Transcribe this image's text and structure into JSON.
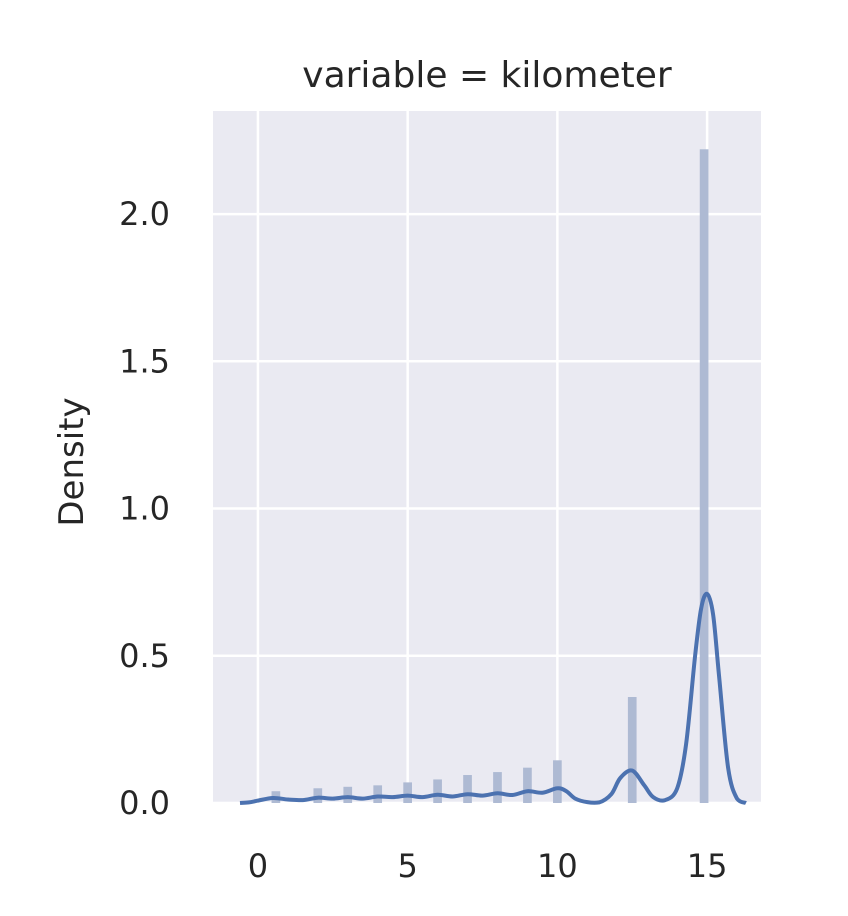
{
  "chart_data": {
    "type": "histogram",
    "title": "variable = kilometer",
    "xlabel": "",
    "ylabel": "Density",
    "xlim": [
      -1.5,
      16.8
    ],
    "ylim": [
      0,
      2.35
    ],
    "xticks": [
      0,
      5,
      10,
      15
    ],
    "yticks": [
      0.0,
      0.5,
      1.0,
      1.5,
      2.0
    ],
    "ytick_labels": [
      "0.0",
      "0.5",
      "1.0",
      "1.5",
      "2.0"
    ],
    "grid": true,
    "colors": {
      "background": "#eaeaf2",
      "bars": "#aebad3",
      "kde": "#4c72b0"
    },
    "histogram": {
      "bin_width": 0.29,
      "bins": [
        {
          "x": 0.6,
          "density": 0.04
        },
        {
          "x": 2.0,
          "density": 0.05
        },
        {
          "x": 3.0,
          "density": 0.055
        },
        {
          "x": 4.0,
          "density": 0.06
        },
        {
          "x": 5.0,
          "density": 0.07
        },
        {
          "x": 6.0,
          "density": 0.08
        },
        {
          "x": 7.0,
          "density": 0.095
        },
        {
          "x": 8.0,
          "density": 0.105
        },
        {
          "x": 9.0,
          "density": 0.12
        },
        {
          "x": 10.0,
          "density": 0.145
        },
        {
          "x": 12.5,
          "density": 0.36
        },
        {
          "x": 14.9,
          "density": 2.22
        }
      ]
    },
    "kde": {
      "x": [
        -0.6,
        -0.3,
        0.0,
        0.5,
        1.0,
        1.5,
        2.0,
        2.5,
        3.0,
        3.5,
        4.0,
        4.5,
        5.0,
        5.5,
        6.0,
        6.5,
        7.0,
        7.5,
        8.0,
        8.5,
        9.0,
        9.5,
        10.0,
        10.3,
        10.6,
        11.0,
        11.4,
        11.8,
        12.1,
        12.5,
        12.9,
        13.2,
        13.6,
        14.0,
        14.3,
        14.6,
        14.8,
        15.0,
        15.2,
        15.4,
        15.7,
        16.0,
        16.3
      ],
      "y": [
        0.0,
        0.002,
        0.008,
        0.017,
        0.012,
        0.01,
        0.018,
        0.015,
        0.02,
        0.015,
        0.022,
        0.02,
        0.025,
        0.02,
        0.028,
        0.022,
        0.03,
        0.025,
        0.033,
        0.027,
        0.04,
        0.035,
        0.05,
        0.04,
        0.015,
        0.003,
        0.002,
        0.03,
        0.085,
        0.11,
        0.06,
        0.02,
        0.01,
        0.05,
        0.2,
        0.5,
        0.66,
        0.71,
        0.64,
        0.43,
        0.12,
        0.015,
        0.0
      ]
    }
  }
}
